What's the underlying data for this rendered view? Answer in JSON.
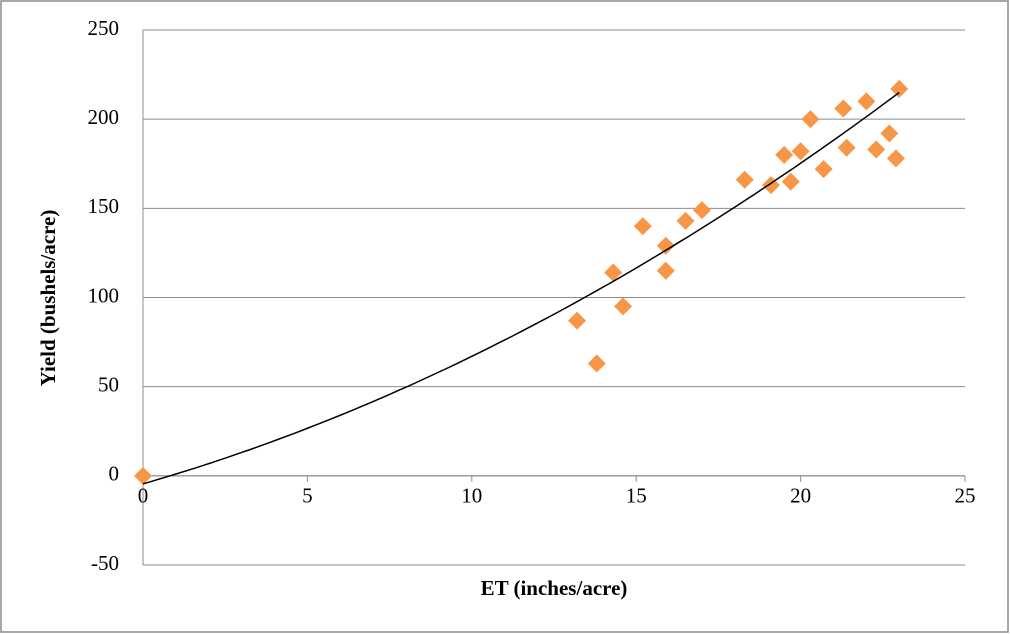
{
  "chart_data": {
    "type": "scatter",
    "x_label": "ET (inches/acre)",
    "y_label": "Yield (bushels/acre)",
    "xlim": [
      0,
      25
    ],
    "xticks": [
      0,
      5,
      10,
      15,
      20,
      25
    ],
    "ylim": [
      -50,
      250
    ],
    "yticks": [
      -50,
      0,
      50,
      100,
      150,
      200,
      250
    ],
    "grid": true,
    "series": [
      {
        "color": "#f79646",
        "x": [
          0,
          13.2,
          13.8,
          14.3,
          14.6,
          15.2,
          15.9,
          15.9,
          16.5,
          17.0,
          18.3,
          19.1,
          19.5,
          19.7,
          20.0,
          20.3,
          20.7,
          21.3,
          21.4,
          22.0,
          22.3,
          22.7,
          22.9,
          23.0
        ],
        "values": [
          0,
          87,
          63,
          114,
          95,
          140,
          129,
          115,
          143,
          149,
          166,
          163,
          180,
          165,
          182,
          200,
          172,
          206,
          184,
          210,
          183,
          192,
          178,
          217
        ]
      }
    ],
    "trendline": {
      "color": "#000000",
      "coefficients": [
        0.184,
        5.31,
        -4.5
      ]
    }
  }
}
